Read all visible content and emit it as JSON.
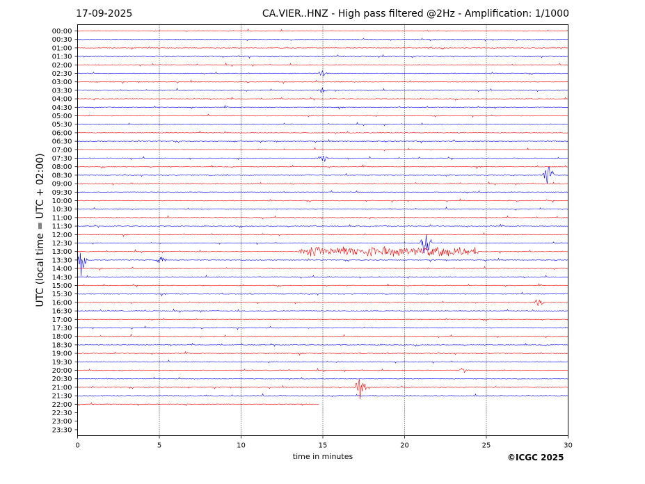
{
  "header": {
    "date": "17-09-2025",
    "title": "CA.VIER..HNZ - High pass filtered @2Hz - Amplification: 1/1000"
  },
  "footer": {
    "copyright": "©ICGC 2025"
  },
  "chart_data": {
    "type": "helicorder",
    "xlabel": "time in minutes",
    "ylabel": "UTC (local time = UTC + 02:00)",
    "xlim": [
      0,
      30
    ],
    "x_ticks": [
      0,
      5,
      10,
      15,
      20,
      25,
      30
    ],
    "grid": "vertical dotted lines at 5-minute intervals",
    "rows": [
      "00:00",
      "00:30",
      "01:00",
      "01:30",
      "02:00",
      "02:30",
      "03:00",
      "03:30",
      "04:00",
      "04:30",
      "05:00",
      "05:30",
      "06:00",
      "06:30",
      "07:00",
      "07:30",
      "08:00",
      "08:30",
      "09:00",
      "09:30",
      "10:00",
      "10:30",
      "11:00",
      "11:30",
      "12:00",
      "12:30",
      "13:00",
      "13:30",
      "14:00",
      "14:30",
      "15:00",
      "15:30",
      "16:00",
      "16:30",
      "17:00",
      "17:30",
      "18:00",
      "18:30",
      "19:00",
      "19:30",
      "20:00",
      "20:30",
      "21:00",
      "21:30",
      "22:00",
      "22:30",
      "23:00",
      "23:30"
    ],
    "trace_colors": [
      "#ff0000",
      "#0000ff"
    ],
    "data_end": {
      "row": "22:00",
      "minute": 14.8
    },
    "notable_events": [
      {
        "row": "08:30",
        "minute": 28.8,
        "amplitude": "large"
      },
      {
        "row": "13:00",
        "minute_range": [
          13.5,
          24.5
        ],
        "amplitude": "strong"
      },
      {
        "row": "13:30",
        "minute": 0.2,
        "amplitude": "large"
      },
      {
        "row": "13:30",
        "minute": 5.1,
        "amplitude": "medium"
      },
      {
        "row": "16:00",
        "minute": 28.2,
        "amplitude": "medium"
      },
      {
        "row": "21:00",
        "minute": 17.3,
        "amplitude": "large"
      },
      {
        "row": "12:30",
        "minute": 21.3,
        "amplitude": "large"
      },
      {
        "row": "07:30",
        "minute": 15.0,
        "amplitude": "medium"
      },
      {
        "row": "02:30",
        "minute": 15.0,
        "amplitude": "small"
      },
      {
        "row": "03:30",
        "minute": 15.0,
        "amplitude": "small"
      },
      {
        "row": "20:00",
        "minute": 23.6,
        "amplitude": "small"
      }
    ]
  }
}
